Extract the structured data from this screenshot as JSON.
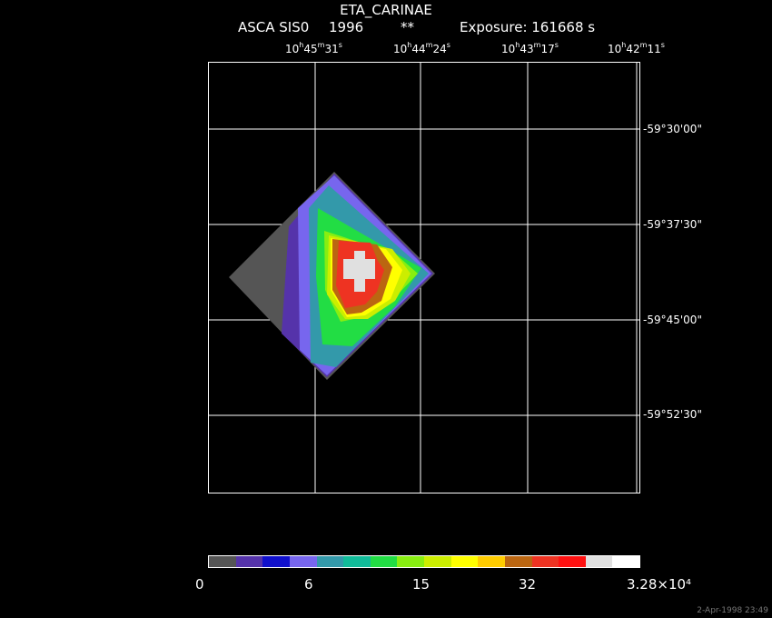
{
  "header": {
    "title": "ETA_CARINAE",
    "instrument": "ASCA SIS0",
    "year": "1996",
    "marker": "**",
    "exposure": "Exposure: 161668 s"
  },
  "ra_ticks": [
    {
      "h": "10",
      "m": "45",
      "s": "31"
    },
    {
      "h": "10",
      "m": "44",
      "s": "24"
    },
    {
      "h": "10",
      "m": "43",
      "s": "17"
    },
    {
      "h": "10",
      "m": "42",
      "s": "11"
    }
  ],
  "dec_ticks": [
    "-59°30'00\"",
    "-59°37'30\"",
    "-59°45'00\"",
    "-59°52'30\""
  ],
  "colorbar": {
    "colors": [
      "#555555",
      "#5533aa",
      "#1010cc",
      "#7766ee",
      "#3399aa",
      "#11bb99",
      "#22dd44",
      "#88ee11",
      "#ccee00",
      "#ffff00",
      "#ffcc00",
      "#bb6611",
      "#ee3322",
      "#ff1111",
      "#e0e0e0",
      "#ffffff"
    ],
    "labels": [
      "0",
      "6",
      "15",
      "32",
      "3.28×10⁴"
    ]
  },
  "timestamp": "2-Apr-1998 23:49"
}
